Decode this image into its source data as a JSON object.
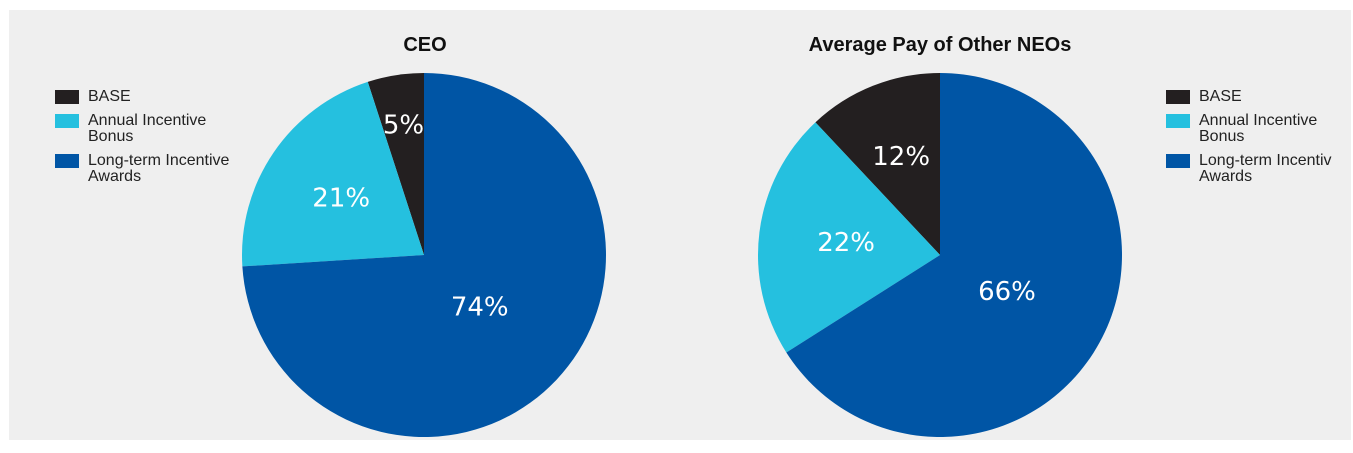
{
  "chart_data": [
    {
      "type": "pie",
      "title": "CEO",
      "categories": [
        "BASE",
        "Annual Incentive Bonus",
        "Long-term Incentive Awards"
      ],
      "values": [
        5,
        21,
        74
      ],
      "labels": [
        "5%",
        "21%",
        "74%"
      ],
      "colors": [
        "#231f20",
        "#25c0df",
        "#0055a5"
      ],
      "label_colors": [
        "#ffffff",
        "#ffffff",
        "#ffffff"
      ],
      "legend": {
        "placement": "left",
        "entries": [
          {
            "text": "BASE",
            "color": "#231f20"
          },
          {
            "text": "Annual Incentive\nBonus",
            "color": "#25c0df"
          },
          {
            "text": "Long-term Incentive\nAwards",
            "color": "#0055a5"
          }
        ]
      }
    },
    {
      "type": "pie",
      "title": "Average Pay of Other NEOs",
      "categories": [
        "BASE",
        "Annual Incentive Bonus",
        "Long-term Incentive Awards"
      ],
      "values": [
        12,
        22,
        66
      ],
      "labels": [
        "12%",
        "22%",
        "66%"
      ],
      "colors": [
        "#231f20",
        "#25c0df",
        "#0055a5"
      ],
      "label_colors": [
        "#ffffff",
        "#ffffff",
        "#ffffff"
      ],
      "legend": {
        "placement": "right",
        "entries": [
          {
            "text": "BASE",
            "color": "#231f20"
          },
          {
            "text": "Annual Incentive\nBonus",
            "color": "#25c0df"
          },
          {
            "text": "Long-term Incentiv\nAwards",
            "color": "#0055a5"
          }
        ]
      }
    }
  ]
}
